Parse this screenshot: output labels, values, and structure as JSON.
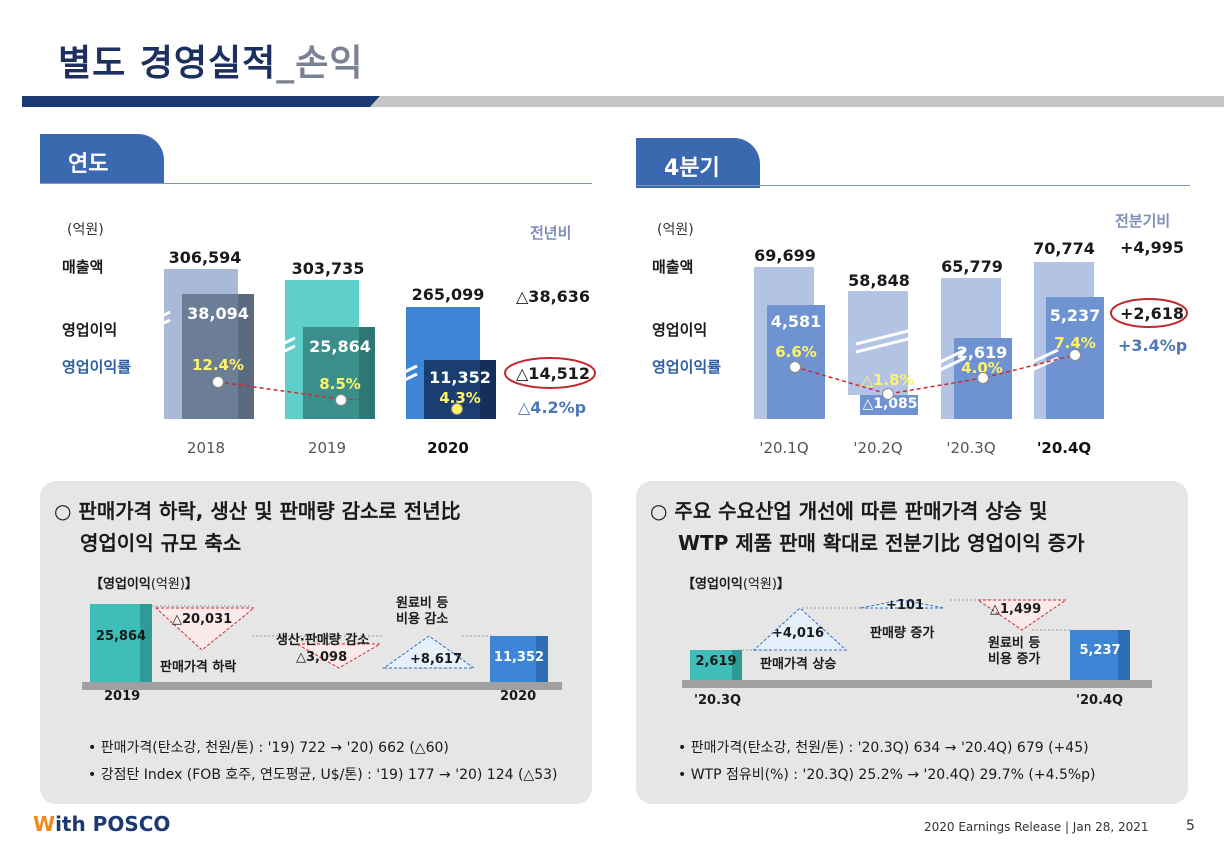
{
  "title": {
    "main": "별도 경영실적",
    "sub": "_손익"
  },
  "annual": {
    "tab": "연도",
    "unit": "(억원)",
    "compare_header": "전년비",
    "row_labels": {
      "revenue": "매출액",
      "op_income": "영업이익",
      "op_margin": "영업이익률"
    },
    "years": [
      "2018",
      "2019",
      "2020"
    ],
    "revenue": [
      "306,594",
      "303,735",
      "265,099"
    ],
    "op_income": [
      "38,094",
      "25,864",
      "11,352"
    ],
    "op_margin": [
      "12.4%",
      "8.5%",
      "4.3%"
    ],
    "change_revenue": "△38,636",
    "change_op_income": "△14,512",
    "change_margin": "△4.2%p",
    "revenue_values": [
      306594,
      303735,
      265099
    ],
    "op_income_values": [
      38094,
      25864,
      11352
    ]
  },
  "quarterly": {
    "tab": "4분기",
    "unit": "(억원)",
    "compare_header": "전분기비",
    "row_labels": {
      "revenue": "매출액",
      "op_income": "영업이익",
      "op_margin": "영업이익률"
    },
    "quarters": [
      "'20.1Q",
      "'20.2Q",
      "'20.3Q",
      "'20.4Q"
    ],
    "revenue": [
      "69,699",
      "58,848",
      "65,779",
      "70,774"
    ],
    "op_income": [
      "4,581",
      "△1,085",
      "2,619",
      "5,237"
    ],
    "op_margin": [
      "6.6%",
      "△1.8%",
      "4.0%",
      "7.4%"
    ],
    "change_revenue": "+4,995",
    "change_op_income": "+2,618",
    "change_margin": "+3.4%p"
  },
  "left_panel": {
    "heading_line1": "○ 판매가격 하락, 생산 및 판매량 감소로 전년比",
    "heading_line2": "영업이익 규모 축소",
    "chart_label": "【영업이익",
    "chart_unit": "(억원)",
    "chart_label_end": "】",
    "start_value": "25,864",
    "end_value": "11,352",
    "start_label": "2019",
    "end_label": "2020",
    "steps": [
      {
        "value": "△20,031",
        "label": "판매가격 하락"
      },
      {
        "value": "△3,098",
        "label": "생산·판매량 감소"
      },
      {
        "value": "+8,617",
        "label": "원료비 등\n비용 감소"
      }
    ],
    "bullets": [
      "• 판매가격(탄소강, 천원/톤) : '19) 722 → '20) 662 (△60)",
      "• 강점탄 Index (FOB 호주, 연도평균, U$/톤) : '19) 177 → '20) 124 (△53)"
    ]
  },
  "right_panel": {
    "heading_line1": "○ 주요 수요산업 개선에 따른 판매가격 상승 및",
    "heading_line2": "WTP 제품 판매 확대로 전분기比 영업이익 증가",
    "chart_label": "【영업이익",
    "chart_unit": "(억원)",
    "chart_label_end": "】",
    "start_value": "2,619",
    "end_value": "5,237",
    "start_label": "'20.3Q",
    "end_label": "'20.4Q",
    "steps": [
      {
        "value": "+4,016",
        "label": "판매가격 상승"
      },
      {
        "value": "+101",
        "label": "판매량 증가"
      },
      {
        "value": "△1,499",
        "label": "원료비 등\n비용 증가"
      }
    ],
    "bullets": [
      "• 판매가격(탄소강, 천원/톤) : '20.3Q) 634 → '20.4Q) 679 (+45)",
      "• WTP 점유비(%) : '20.3Q) 25.2% → '20.4Q) 29.7% (+4.5%p)"
    ]
  },
  "footer": {
    "logo_w": "W",
    "logo_rest": "ith POSCO",
    "release": "2020 Earnings Release | Jan 28, 2021",
    "page": "5"
  },
  "colors": {
    "navy": "#1c2f5e",
    "tab": "#3b69b0",
    "teal": "#3fbdb8",
    "red": "#c0282d"
  }
}
